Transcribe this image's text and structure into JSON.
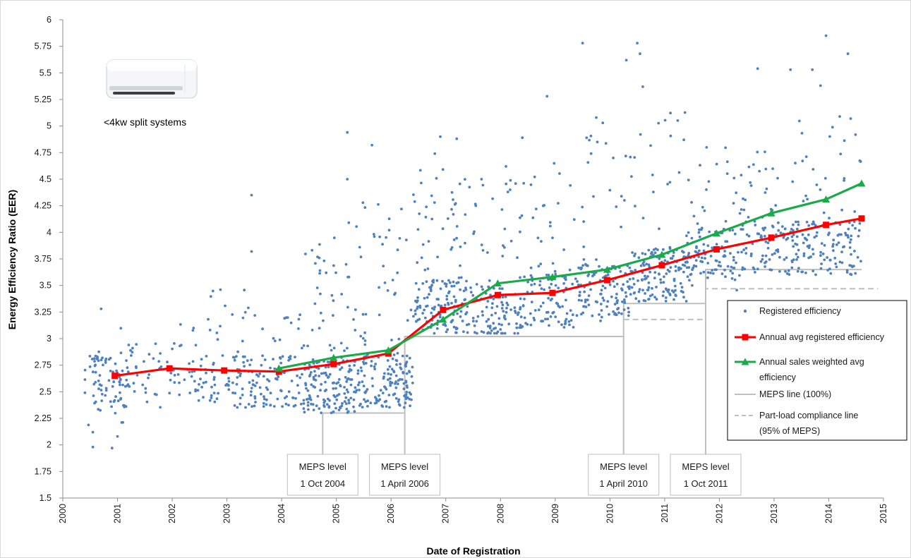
{
  "chart_data": {
    "type": "scatter",
    "xlabel": "Date of Registration",
    "ylabel": "Energy Efficiency Ratio (EER)",
    "xlim": [
      2000,
      2015
    ],
    "ylim": [
      1.5,
      6
    ],
    "x_ticks": [
      "2000",
      "2001",
      "2002",
      "2003",
      "2004",
      "2005",
      "2006",
      "2007",
      "2008",
      "2009",
      "2010",
      "2011",
      "2012",
      "2013",
      "2014",
      "2015"
    ],
    "y_ticks": [
      "1.5",
      "1.75",
      "2",
      "2.25",
      "2.5",
      "2.75",
      "3",
      "3.25",
      "3.5",
      "3.75",
      "4",
      "4.25",
      "4.5",
      "4.75",
      "5",
      "5.25",
      "5.5",
      "5.75",
      "6"
    ],
    "annotation": "<4kw split systems",
    "legend_position": "right",
    "grid": false,
    "colors": {
      "scatter": "#4f81bd",
      "avg_registered": "#ff0000",
      "sales_weighted": "#1aaa4a",
      "meps": "#bfbfbf",
      "part_load": "#bfbfbf"
    },
    "legend": [
      {
        "label": "Registered efficiency",
        "kind": "point"
      },
      {
        "label": "Annual avg registered efficiency",
        "kind": "square-line"
      },
      {
        "label": "Annual sales weighted avg",
        "label2": "efficiency",
        "kind": "triangle-line"
      },
      {
        "label": "MEPS line (100%)",
        "kind": "solid"
      },
      {
        "label": "Part-load compliance line",
        "label2": "(95% of MEPS)",
        "kind": "dashed"
      }
    ],
    "series": [
      {
        "name": "Annual avg registered efficiency",
        "x": [
          2000.95,
          2001.95,
          2002.95,
          2003.95,
          2004.95,
          2005.95,
          2006.95,
          2007.95,
          2008.95,
          2009.95,
          2010.95,
          2011.95,
          2012.95,
          2013.95,
          2014.6
        ],
        "y": [
          2.65,
          2.72,
          2.7,
          2.69,
          2.76,
          2.86,
          3.27,
          3.41,
          3.43,
          3.55,
          3.69,
          3.84,
          3.95,
          4.07,
          4.13
        ]
      },
      {
        "name": "Annual sales weighted avg efficiency",
        "x": [
          2003.95,
          2004.95,
          2005.95,
          2006.95,
          2007.95,
          2008.95,
          2009.95,
          2010.95,
          2011.95,
          2012.95,
          2013.95,
          2014.6
        ],
        "y": [
          2.72,
          2.82,
          2.89,
          3.18,
          3.52,
          3.58,
          3.65,
          3.79,
          3.99,
          4.18,
          4.31,
          4.46
        ]
      }
    ],
    "meps_line": {
      "x": [
        2004.75,
        2006.25,
        2006.25,
        2010.25,
        2010.25,
        2011.75,
        2011.75,
        2014.6
      ],
      "y": [
        2.3,
        2.3,
        3.02,
        3.02,
        3.33,
        3.33,
        3.65,
        3.65
      ]
    },
    "part_load_line": {
      "x": [
        2010.25,
        2011.75,
        2011.75,
        2014.9
      ],
      "y": [
        3.18,
        3.18,
        3.47,
        3.47
      ]
    },
    "meps_levels": [
      {
        "line1": "MEPS level",
        "line2": "1 Oct 2004",
        "x": 2004.75,
        "y": 2.3
      },
      {
        "line1": "MEPS level",
        "line2": "1 April 2006",
        "x": 2006.25,
        "y": 2.3
      },
      {
        "line1": "MEPS level",
        "line2": "1 April 2010",
        "x": 2010.25,
        "y": 3.02
      },
      {
        "line1": "MEPS level",
        "line2": "1 Oct 2011",
        "x": 2011.75,
        "y": 3.33
      }
    ],
    "scatter_clusters": [
      {
        "x0": 2000.4,
        "x1": 2001.2,
        "ymin": 2.1,
        "ymax": 3.1,
        "mode": 2.6,
        "n": 90
      },
      {
        "x0": 2001.2,
        "x1": 2002.4,
        "ymin": 2.3,
        "ymax": 3.3,
        "mode": 2.7,
        "n": 55
      },
      {
        "x0": 2002.4,
        "x1": 2003.4,
        "ymin": 2.35,
        "ymax": 3.5,
        "mode": 2.6,
        "n": 85
      },
      {
        "x0": 2003.4,
        "x1": 2004.4,
        "ymin": 2.35,
        "ymax": 3.3,
        "mode": 2.6,
        "n": 95
      },
      {
        "x0": 2004.4,
        "x1": 2005.4,
        "ymin": 2.3,
        "ymax": 4.1,
        "mode": 2.55,
        "n": 190
      },
      {
        "x0": 2005.4,
        "x1": 2006.4,
        "ymin": 2.3,
        "ymax": 4.3,
        "mode": 2.6,
        "n": 170
      },
      {
        "x0": 2006.4,
        "x1": 2007.4,
        "ymin": 3.05,
        "ymax": 4.6,
        "mode": 3.3,
        "n": 160
      },
      {
        "x0": 2007.4,
        "x1": 2008.4,
        "ymin": 3.05,
        "ymax": 4.5,
        "mode": 3.25,
        "n": 120
      },
      {
        "x0": 2008.4,
        "x1": 2009.4,
        "ymin": 3.05,
        "ymax": 4.7,
        "mode": 3.35,
        "n": 110
      },
      {
        "x0": 2009.4,
        "x1": 2010.4,
        "ymin": 3.05,
        "ymax": 5.1,
        "mode": 3.45,
        "n": 140
      },
      {
        "x0": 2010.4,
        "x1": 2011.4,
        "ymin": 3.3,
        "ymax": 5.2,
        "mode": 3.6,
        "n": 150
      },
      {
        "x0": 2011.4,
        "x1": 2012.4,
        "ymin": 3.45,
        "ymax": 4.8,
        "mode": 3.8,
        "n": 120
      },
      {
        "x0": 2012.4,
        "x1": 2013.4,
        "ymin": 3.6,
        "ymax": 4.8,
        "mode": 3.85,
        "n": 110
      },
      {
        "x0": 2013.4,
        "x1": 2014.6,
        "ymin": 3.6,
        "ymax": 5.1,
        "mode": 3.85,
        "n": 130
      }
    ],
    "scatter_outliers": [
      {
        "x": 2000.55,
        "y": 1.98
      },
      {
        "x": 2000.55,
        "y": 2.12
      },
      {
        "x": 2000.9,
        "y": 1.97
      },
      {
        "x": 2001.0,
        "y": 2.08
      },
      {
        "x": 2000.7,
        "y": 3.28
      },
      {
        "x": 2003.45,
        "y": 4.35
      },
      {
        "x": 2003.45,
        "y": 3.82
      },
      {
        "x": 2005.2,
        "y": 4.94
      },
      {
        "x": 2005.2,
        "y": 4.5
      },
      {
        "x": 2005.65,
        "y": 4.82
      },
      {
        "x": 2006.8,
        "y": 4.74
      },
      {
        "x": 2006.9,
        "y": 4.9
      },
      {
        "x": 2007.2,
        "y": 4.88
      },
      {
        "x": 2008.1,
        "y": 4.62
      },
      {
        "x": 2008.4,
        "y": 4.89
      },
      {
        "x": 2008.85,
        "y": 5.28
      },
      {
        "x": 2009.5,
        "y": 5.78
      },
      {
        "x": 2009.75,
        "y": 5.08
      },
      {
        "x": 2010.3,
        "y": 5.62
      },
      {
        "x": 2010.5,
        "y": 5.78
      },
      {
        "x": 2010.55,
        "y": 5.68
      },
      {
        "x": 2010.6,
        "y": 5.37
      },
      {
        "x": 2012.7,
        "y": 5.54
      },
      {
        "x": 2013.3,
        "y": 5.53
      },
      {
        "x": 2013.7,
        "y": 5.53
      },
      {
        "x": 2013.95,
        "y": 5.85
      },
      {
        "x": 2014.35,
        "y": 5.68
      },
      {
        "x": 2014.4,
        "y": 5.07
      },
      {
        "x": 2014.2,
        "y": 5.09
      },
      {
        "x": 2013.85,
        "y": 5.38
      }
    ]
  }
}
